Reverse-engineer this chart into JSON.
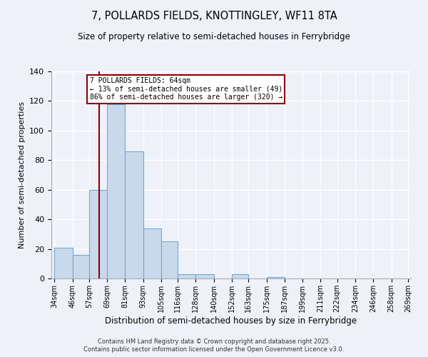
{
  "title": "7, POLLARDS FIELDS, KNOTTINGLEY, WF11 8TA",
  "subtitle": "Size of property relative to semi-detached houses in Ferrybridge",
  "xlabel": "Distribution of semi-detached houses by size in Ferrybridge",
  "ylabel": "Number of semi-detached properties",
  "bin_edges": [
    34,
    46,
    57,
    69,
    81,
    93,
    105,
    116,
    128,
    140,
    152,
    163,
    175,
    187,
    199,
    211,
    222,
    234,
    246,
    258,
    269
  ],
  "bar_heights": [
    21,
    16,
    60,
    118,
    86,
    34,
    25,
    3,
    3,
    0,
    3,
    0,
    1,
    0,
    0,
    0,
    0,
    0,
    0,
    0
  ],
  "bar_color": "#c9d9ec",
  "bar_edge_color": "#6fa8d6",
  "property_size": 64,
  "vline_color": "#8b0000",
  "annotation_text": "7 POLLARDS FIELDS: 64sqm\n← 13% of semi-detached houses are smaller (49)\n86% of semi-detached houses are larger (320) →",
  "annotation_box_color": "#ffffff",
  "annotation_border_color": "#8b0000",
  "ylim": [
    0,
    140
  ],
  "yticks": [
    0,
    20,
    40,
    60,
    80,
    100,
    120,
    140
  ],
  "footer_line1": "Contains HM Land Registry data © Crown copyright and database right 2025.",
  "footer_line2": "Contains public sector information licensed under the Open Government Licence v3.0.",
  "bg_color": "#eef2f8",
  "plot_bg_color": "#eef2f8"
}
